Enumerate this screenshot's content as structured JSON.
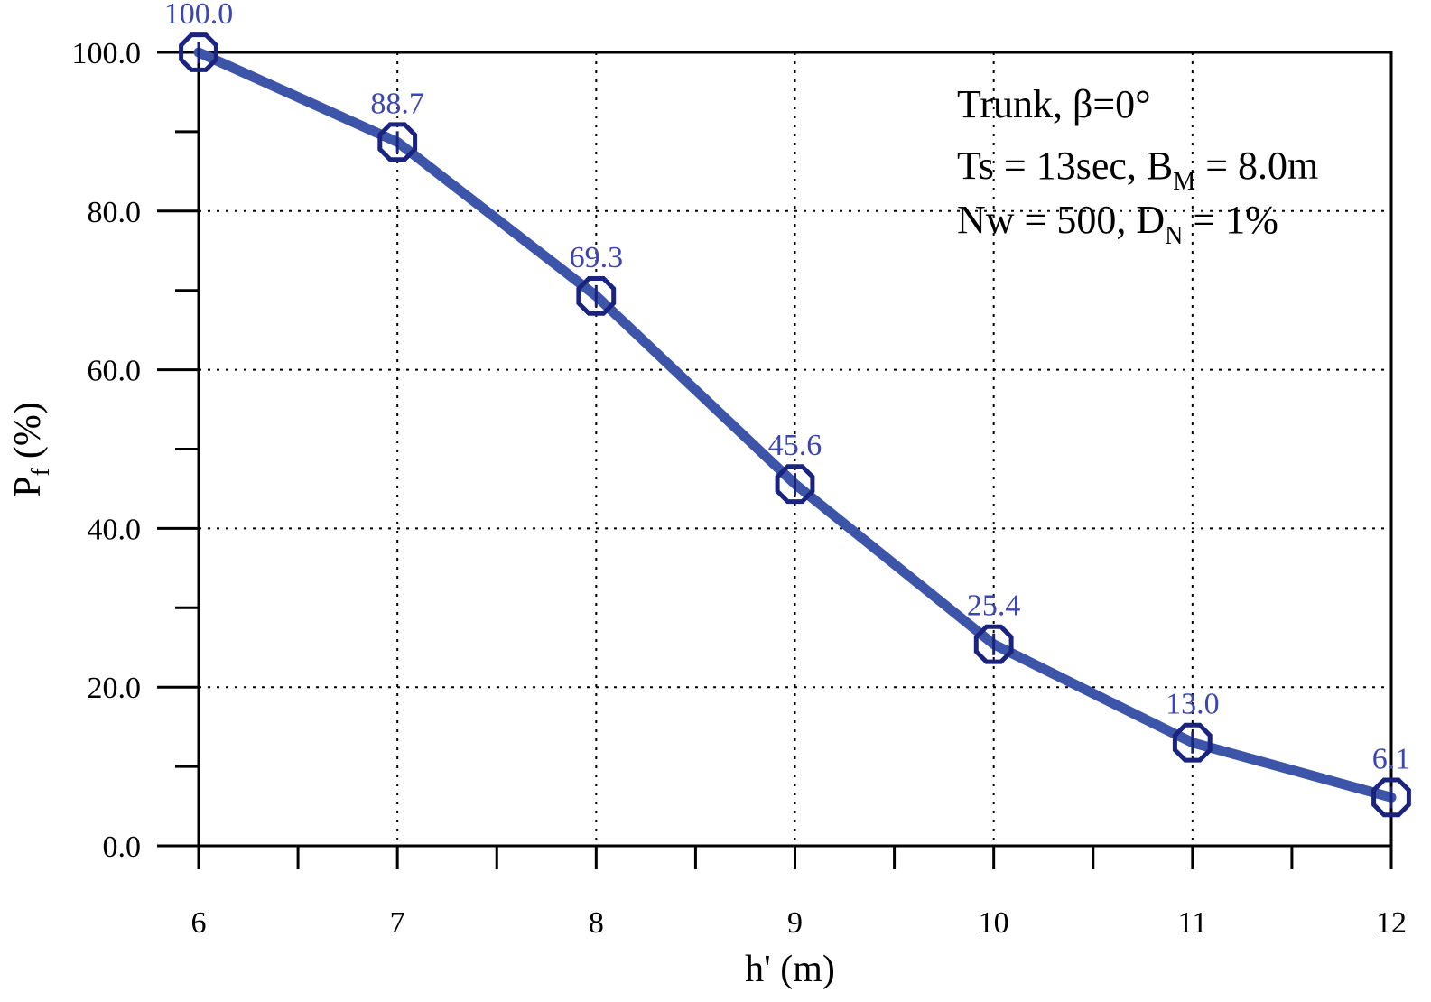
{
  "chart_data": {
    "type": "line",
    "xlabel": "h' (m)",
    "ylabel": "P",
    "ylabel_sub": "f",
    "ylabel_unit": "(%)",
    "x": [
      6,
      7,
      8,
      9,
      10,
      11,
      12
    ],
    "x_ticks": [
      6,
      7,
      8,
      9,
      10,
      11,
      12
    ],
    "x_tick_labels": [
      "6",
      "7",
      "8",
      "9",
      "10",
      "11",
      "12"
    ],
    "y_ticks": [
      0,
      20,
      40,
      60,
      80,
      100
    ],
    "y_tick_labels": [
      "0.0",
      "20.0",
      "40.0",
      "60.0",
      "80.0",
      "100.0"
    ],
    "xlim": [
      6,
      12
    ],
    "ylim": [
      0,
      100
    ],
    "grid": true,
    "series": [
      {
        "values": [
          100.0,
          88.7,
          69.3,
          45.6,
          25.4,
          13.0,
          6.1
        ],
        "labels": [
          "100.0",
          "88.7",
          "69.3",
          "45.6",
          "25.4",
          "13.0",
          "6.1"
        ],
        "line_color": "#3c55a8",
        "marker_color": "#1a237e",
        "label_color": "#3b46b0",
        "marker": "octagon"
      }
    ],
    "annotations": {
      "line1": "Trunk, β=0°",
      "line2_a": "Ts = 13sec, B",
      "line2_sub": "M",
      "line2_b": " = 8.0m",
      "line3_a": "Nw = 500, D",
      "line3_sub": "N",
      "line3_b": " = 1%"
    }
  }
}
